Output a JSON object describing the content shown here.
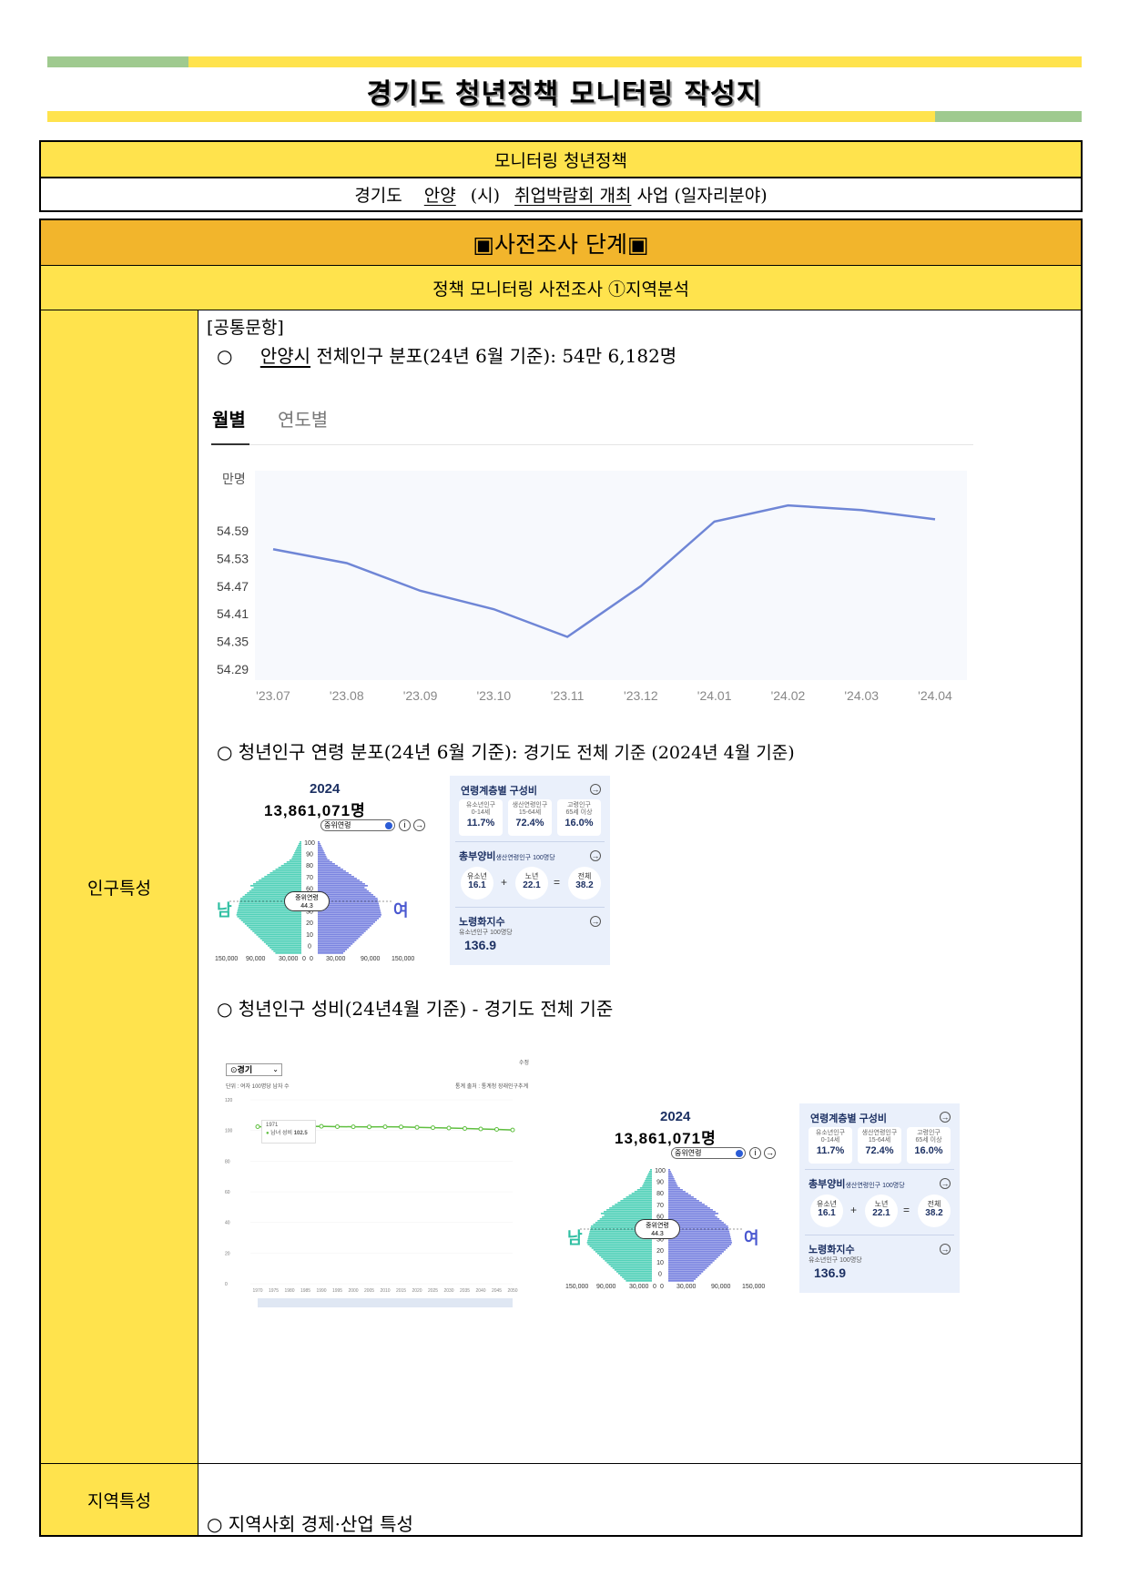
{
  "title": "경기도 청년정책 모니터링 작성지",
  "policy_table": {
    "header": "모니터링 청년정책",
    "prefix": "경기도",
    "city": "안양",
    "city_suffix": "(시)",
    "project": "취업박람회 개최",
    "project_suffix": "사업 (일자리분야)"
  },
  "stage": {
    "title": "▣사전조사 단계▣",
    "subtitle": "정책 모니터링 사전조사 ①지역분석"
  },
  "sections": {
    "population_label": "인구특성",
    "region_label": "지역특성",
    "common_label": "[공통문항]",
    "bullet1_mark": "○",
    "bullet1_city": "안양시",
    "bullet1_text": "전체인구 분포(24년 6월 기준):",
    "bullet1_value": "54만 6,182명",
    "bullet2_text": "○ 청년인구 연령 분포(24년 6월 기준):",
    "bullet2_value": "경기도 전체 기준 (2024년 4월 기준)",
    "bullet3_text": "○ 청년인구 성비(24년4월 기준) - 경기도 전체 기준",
    "region_bullet": "○ 지역사회 경제·산업 특성"
  },
  "line_chart": {
    "tabs": [
      "월별",
      "연도별"
    ],
    "active_tab": 0
  },
  "pyramid": {
    "year": "2024",
    "total": "13,861,071명",
    "median_toggle": "중위연령",
    "median_label": "중위연령",
    "median_value": "44.3",
    "male": "남",
    "female": "여",
    "age_ticks": [
      "100",
      "90",
      "80",
      "70",
      "60",
      "50",
      "30",
      "20",
      "10",
      "0"
    ],
    "x_ticks": [
      "150,000",
      "90,000",
      "30,000",
      "0",
      "0",
      "30,000",
      "90,000",
      "150,000"
    ],
    "male_color": "#52d1b9",
    "female_color": "#7a84e0"
  },
  "stats_card": {
    "composition_title": "연령계층별 구성비",
    "groups": [
      {
        "label": "유소년인구",
        "range": "0-14세",
        "value": "11.7%"
      },
      {
        "label": "생산연령인구",
        "range": "15-64세",
        "value": "72.4%"
      },
      {
        "label": "고령인구",
        "range": "65세 이상",
        "value": "16.0%"
      }
    ],
    "dependency_title": "총부양비",
    "dependency_note": "생산연령인구 100명당",
    "dependency_items": [
      {
        "label": "유소년",
        "value": "16.1"
      },
      {
        "label": "노년",
        "value": "22.1"
      },
      {
        "label": "전체",
        "value": "38.2"
      }
    ],
    "aging_title": "노령화지수",
    "aging_note": "유소년인구 100명당",
    "aging_value": "136.9"
  },
  "sex_ratio_chart": {
    "region": "경기",
    "unit": "단위 : 여자 100명당 남자 수",
    "source": "통계 출처 : 통계청 장래인구추계",
    "corner": "수정",
    "tooltip_year": "1971",
    "tooltip_label": "남녀 성비",
    "tooltip_value": "102.5"
  },
  "chart_data": [
    {
      "type": "line",
      "ylabel": "만명",
      "categories": [
        "'23.07",
        "'23.08",
        "'23.09",
        "'23.10",
        "'23.11",
        "'23.12",
        "'24.01",
        "'24.02",
        "'24.03",
        "'24.04"
      ],
      "values": [
        54.55,
        54.52,
        54.46,
        54.42,
        54.36,
        54.47,
        54.61,
        54.645,
        54.635,
        54.615
      ],
      "yticks": [
        "54.59",
        "54.53",
        "54.47",
        "54.41",
        "54.35",
        "54.29"
      ],
      "ylim": [
        54.29,
        54.65
      ],
      "grid": false,
      "color": "#6f86d6"
    },
    {
      "type": "line",
      "title": "",
      "ylim": [
        0,
        120
      ],
      "yticks": [
        "120",
        "100",
        "80",
        "60",
        "40",
        "20",
        "0"
      ],
      "x": [
        "1970",
        "1975",
        "1980",
        "1985",
        "1990",
        "1995",
        "2000",
        "2005",
        "2010",
        "2015",
        "2020",
        "2025",
        "2030",
        "2035",
        "2040",
        "2045",
        "2050"
      ],
      "values": [
        102.5,
        102.2,
        102.4,
        102.6,
        102.7,
        102.5,
        102.4,
        102.3,
        102.4,
        102.3,
        102.0,
        101.8,
        101.6,
        101.3,
        101.0,
        100.7,
        100.3
      ],
      "color": "#5fbf3f"
    }
  ]
}
